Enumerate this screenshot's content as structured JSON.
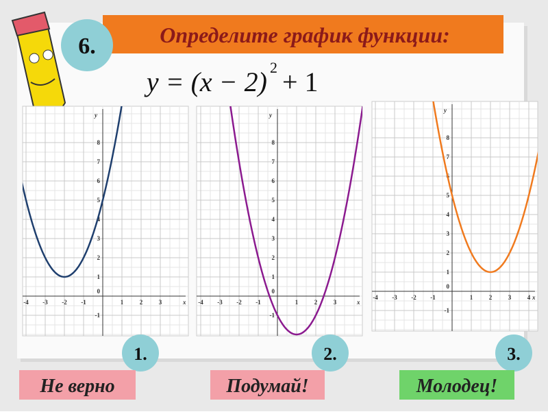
{
  "number": "6.",
  "title": "Определите график функции:",
  "formula": {
    "base": "y = (x − 2)",
    "power": "2",
    "tail": "+ 1"
  },
  "graphs": [
    {
      "label": "1.",
      "verdict": "Не верно",
      "verdict_color": "#f3a0a8",
      "color": "#1f3f6e",
      "x_label": "x",
      "y_label": "y",
      "origin": "0",
      "xticks": [
        -4,
        -3,
        -2,
        -1,
        1,
        2,
        3
      ],
      "yticks": [
        -1,
        1,
        2,
        3,
        4,
        5,
        6,
        7,
        8
      ],
      "vertex": {
        "x": -2,
        "y": 1
      }
    },
    {
      "label": "2.",
      "verdict": "Подумай!",
      "verdict_color": "#f3a0a8",
      "color": "#8b1a8f",
      "x_label": "x",
      "y_label": "y",
      "origin": "0",
      "xticks": [
        -4,
        -3,
        -2,
        -1,
        1,
        2,
        3
      ],
      "yticks": [
        -1,
        1,
        2,
        3,
        4,
        5,
        6,
        7,
        8
      ],
      "vertex": {
        "x": 1,
        "y": -2
      }
    },
    {
      "label": "3.",
      "verdict": "Молодец!",
      "verdict_color": "#6fd36a",
      "color": "#f07a1e",
      "x_label": "x",
      "y_label": "y",
      "origin": "0",
      "xticks": [
        -4,
        -3,
        -2,
        -1,
        1,
        2,
        3,
        4
      ],
      "yticks": [
        -1,
        1,
        2,
        3,
        4,
        5,
        6,
        7,
        8
      ],
      "vertex": {
        "x": 2,
        "y": 1
      }
    }
  ]
}
